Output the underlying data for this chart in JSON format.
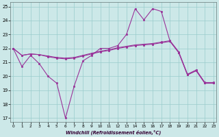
{
  "xlabel": "Windchill (Refroidissement éolien,°C)",
  "background_color": "#cce8e8",
  "line_color": "#993399",
  "grid_color": "#99cccc",
  "xlim_min": -0.3,
  "xlim_max": 23.3,
  "ylim_min": 16.7,
  "ylim_max": 25.3,
  "yticks": [
    17,
    18,
    19,
    20,
    21,
    22,
    23,
    24,
    25
  ],
  "xticks": [
    0,
    1,
    2,
    3,
    4,
    5,
    6,
    7,
    8,
    9,
    10,
    11,
    12,
    13,
    14,
    15,
    16,
    17,
    18,
    19,
    20,
    21,
    22,
    23
  ],
  "line1_y": [
    22.0,
    20.7,
    21.5,
    20.9,
    20.0,
    19.5,
    17.0,
    19.3,
    21.1,
    21.5,
    22.0,
    22.0,
    22.2,
    23.0,
    24.85,
    24.05,
    24.85,
    24.65,
    22.5,
    21.7,
    20.1,
    20.4,
    19.5,
    19.5
  ],
  "line2_y": [
    22.0,
    21.5,
    21.6,
    21.55,
    21.4,
    21.3,
    21.25,
    21.3,
    21.45,
    21.6,
    21.75,
    21.85,
    22.0,
    22.1,
    22.2,
    22.25,
    22.3,
    22.4,
    22.5,
    21.7,
    20.1,
    20.4,
    19.5,
    19.5
  ],
  "line3_y": [
    22.0,
    21.5,
    21.6,
    21.55,
    21.45,
    21.35,
    21.3,
    21.35,
    21.5,
    21.65,
    21.8,
    21.9,
    22.05,
    22.15,
    22.25,
    22.3,
    22.35,
    22.45,
    22.55,
    21.75,
    20.15,
    20.45,
    19.55,
    19.55
  ]
}
